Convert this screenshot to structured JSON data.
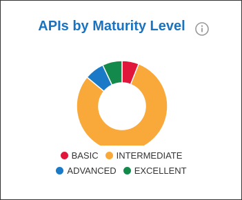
{
  "chart_data": {
    "type": "pie",
    "donut": true,
    "title": "APIs by Maturity Level",
    "categories": [
      "BASIC",
      "INTERMEDIATE",
      "ADVANCED",
      "EXCELLENT"
    ],
    "values": [
      6,
      80,
      7,
      7
    ],
    "colors": [
      "#e0173b",
      "#f9a83a",
      "#1a7ac7",
      "#138a4b"
    ]
  }
}
